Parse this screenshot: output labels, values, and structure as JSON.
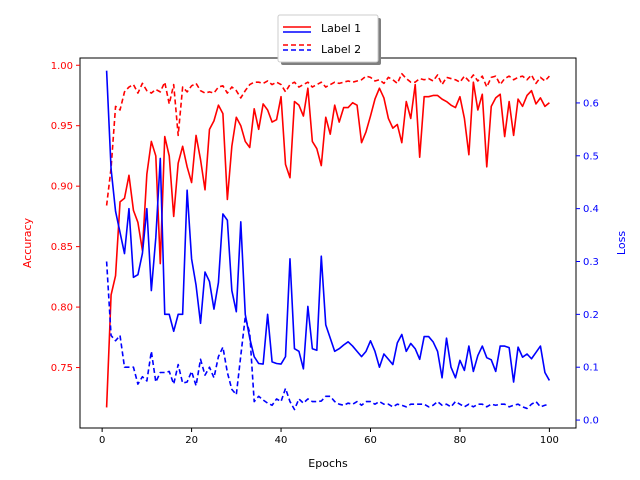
{
  "chart_data": {
    "type": "line",
    "xlabel": "Epochs",
    "ylabel_left": "Accuracy",
    "ylabel_right": "Loss",
    "xlim": [
      -4.95,
      105.95
    ],
    "ylim_left": [
      0.7,
      1.006
    ],
    "ylim_right": [
      -0.015,
      0.685
    ],
    "x_ticks": [
      0,
      20,
      40,
      60,
      80,
      100
    ],
    "x_tick_labels": [
      "0",
      "20",
      "40",
      "60",
      "80",
      "100"
    ],
    "y_left_ticks": [
      0.75,
      0.8,
      0.85,
      0.9,
      0.95,
      1.0
    ],
    "y_left_tick_labels": [
      "0.75",
      "0.80",
      "0.85",
      "0.90",
      "0.95",
      "1.00"
    ],
    "y_right_ticks": [
      0.0,
      0.1,
      0.2,
      0.3,
      0.4,
      0.5,
      0.6
    ],
    "y_right_tick_labels": [
      "0.0",
      "0.1",
      "0.2",
      "0.3",
      "0.4",
      "0.5",
      "0.6"
    ],
    "grid": false,
    "legend": {
      "placement": "top-center",
      "entries": [
        {
          "label": "Label 1",
          "style": "solid"
        },
        {
          "label": "Label 2",
          "style": "dashed"
        }
      ]
    },
    "colors": {
      "accuracy": "#ff0000",
      "loss": "#0000ff",
      "axis": "#000000"
    },
    "x": [
      1,
      2,
      3,
      4,
      5,
      6,
      7,
      8,
      9,
      10,
      11,
      12,
      13,
      14,
      15,
      16,
      17,
      18,
      19,
      20,
      21,
      22,
      23,
      24,
      25,
      26,
      27,
      28,
      29,
      30,
      31,
      32,
      33,
      34,
      35,
      36,
      37,
      38,
      39,
      40,
      41,
      42,
      43,
      44,
      45,
      46,
      47,
      48,
      49,
      50,
      51,
      52,
      53,
      54,
      55,
      56,
      57,
      58,
      59,
      60,
      61,
      62,
      63,
      64,
      65,
      66,
      67,
      68,
      69,
      70,
      71,
      72,
      73,
      74,
      75,
      76,
      77,
      78,
      79,
      80,
      81,
      82,
      83,
      84,
      85,
      86,
      87,
      88,
      89,
      90,
      91,
      92,
      93,
      94,
      95,
      96,
      97,
      98,
      99,
      100
    ],
    "series": [
      {
        "axis": "left",
        "color": "#ff0000",
        "style": "solid",
        "values": [
          0.717,
          0.81,
          0.826,
          0.887,
          0.89,
          0.909,
          0.88,
          0.87,
          0.847,
          0.91,
          0.937,
          0.925,
          0.836,
          0.941,
          0.925,
          0.875,
          0.919,
          0.933,
          0.916,
          0.903,
          0.942,
          0.922,
          0.897,
          0.947,
          0.954,
          0.967,
          0.96,
          0.889,
          0.933,
          0.957,
          0.95,
          0.937,
          0.932,
          0.964,
          0.947,
          0.968,
          0.963,
          0.953,
          0.955,
          0.974,
          0.918,
          0.907,
          0.97,
          0.967,
          0.958,
          0.981,
          0.937,
          0.931,
          0.917,
          0.957,
          0.943,
          0.967,
          0.953,
          0.965,
          0.965,
          0.969,
          0.967,
          0.936,
          0.945,
          0.958,
          0.972,
          0.981,
          0.973,
          0.956,
          0.948,
          0.951,
          0.936,
          0.97,
          0.956,
          0.984,
          0.924,
          0.974,
          0.974,
          0.975,
          0.975,
          0.972,
          0.97,
          0.967,
          0.965,
          0.974,
          0.956,
          0.926,
          0.986,
          0.963,
          0.976,
          0.916,
          0.966,
          0.973,
          0.976,
          0.941,
          0.97,
          0.942,
          0.972,
          0.966,
          0.975,
          0.979,
          0.968,
          0.973,
          0.966,
          0.969
        ]
      },
      {
        "axis": "left",
        "color": "#ff0000",
        "style": "dashed",
        "values": [
          0.884,
          0.915,
          0.966,
          0.963,
          0.978,
          0.982,
          0.984,
          0.977,
          0.985,
          0.979,
          0.977,
          0.98,
          0.978,
          0.986,
          0.968,
          0.984,
          0.942,
          0.982,
          0.978,
          0.983,
          0.985,
          0.979,
          0.977,
          0.978,
          0.977,
          0.982,
          0.983,
          0.977,
          0.982,
          0.979,
          0.973,
          0.979,
          0.984,
          0.986,
          0.986,
          0.985,
          0.987,
          0.984,
          0.986,
          0.984,
          0.978,
          0.984,
          0.986,
          0.982,
          0.984,
          0.986,
          0.982,
          0.984,
          0.986,
          0.982,
          0.984,
          0.986,
          0.985,
          0.986,
          0.987,
          0.986,
          0.987,
          0.988,
          0.991,
          0.99,
          0.987,
          0.988,
          0.985,
          0.99,
          0.988,
          0.985,
          0.993,
          0.989,
          0.986,
          0.986,
          0.989,
          0.988,
          0.989,
          0.987,
          0.992,
          0.984,
          0.99,
          0.989,
          0.988,
          0.986,
          0.991,
          0.987,
          0.992,
          0.987,
          0.991,
          0.982,
          0.99,
          0.991,
          0.984,
          0.989,
          0.991,
          0.988,
          0.99,
          0.991,
          0.988,
          0.992,
          0.985,
          0.99,
          0.987,
          0.991
        ]
      },
      {
        "axis": "right",
        "color": "#0000ff",
        "style": "solid",
        "values": [
          0.661,
          0.475,
          0.395,
          0.355,
          0.315,
          0.4,
          0.27,
          0.275,
          0.315,
          0.4,
          0.245,
          0.345,
          0.495,
          0.2,
          0.2,
          0.168,
          0.2,
          0.2,
          0.435,
          0.305,
          0.255,
          0.183,
          0.28,
          0.262,
          0.21,
          0.26,
          0.39,
          0.378,
          0.245,
          0.205,
          0.375,
          0.2,
          0.155,
          0.12,
          0.107,
          0.106,
          0.2,
          0.11,
          0.107,
          0.106,
          0.12,
          0.305,
          0.135,
          0.13,
          0.097,
          0.215,
          0.135,
          0.132,
          0.31,
          0.18,
          0.155,
          0.13,
          0.135,
          0.142,
          0.148,
          0.14,
          0.13,
          0.12,
          0.13,
          0.15,
          0.13,
          0.1,
          0.125,
          0.115,
          0.105,
          0.146,
          0.162,
          0.13,
          0.145,
          0.135,
          0.115,
          0.158,
          0.158,
          0.148,
          0.13,
          0.08,
          0.155,
          0.1,
          0.08,
          0.113,
          0.094,
          0.14,
          0.092,
          0.122,
          0.14,
          0.118,
          0.114,
          0.092,
          0.14,
          0.14,
          0.137,
          0.072,
          0.138,
          0.119,
          0.125,
          0.116,
          0.128,
          0.14,
          0.09,
          0.075
        ]
      },
      {
        "axis": "right",
        "color": "#0000ff",
        "style": "dashed",
        "values": [
          0.3,
          0.16,
          0.15,
          0.16,
          0.1,
          0.1,
          0.1,
          0.068,
          0.082,
          0.074,
          0.13,
          0.072,
          0.09,
          0.09,
          0.092,
          0.068,
          0.105,
          0.07,
          0.072,
          0.092,
          0.065,
          0.115,
          0.085,
          0.1,
          0.08,
          0.12,
          0.138,
          0.09,
          0.058,
          0.048,
          0.122,
          0.195,
          0.165,
          0.035,
          0.045,
          0.038,
          0.032,
          0.028,
          0.04,
          0.035,
          0.06,
          0.035,
          0.02,
          0.04,
          0.032,
          0.04,
          0.035,
          0.035,
          0.036,
          0.045,
          0.045,
          0.035,
          0.03,
          0.028,
          0.032,
          0.03,
          0.035,
          0.028,
          0.035,
          0.035,
          0.03,
          0.035,
          0.03,
          0.03,
          0.025,
          0.03,
          0.028,
          0.025,
          0.03,
          0.03,
          0.03,
          0.03,
          0.025,
          0.028,
          0.035,
          0.028,
          0.03,
          0.025,
          0.035,
          0.03,
          0.025,
          0.03,
          0.025,
          0.03,
          0.03,
          0.025,
          0.03,
          0.028,
          0.03,
          0.03,
          0.025,
          0.028,
          0.03,
          0.025,
          0.022,
          0.03,
          0.035,
          0.025,
          0.028,
          0.03
        ]
      }
    ]
  }
}
